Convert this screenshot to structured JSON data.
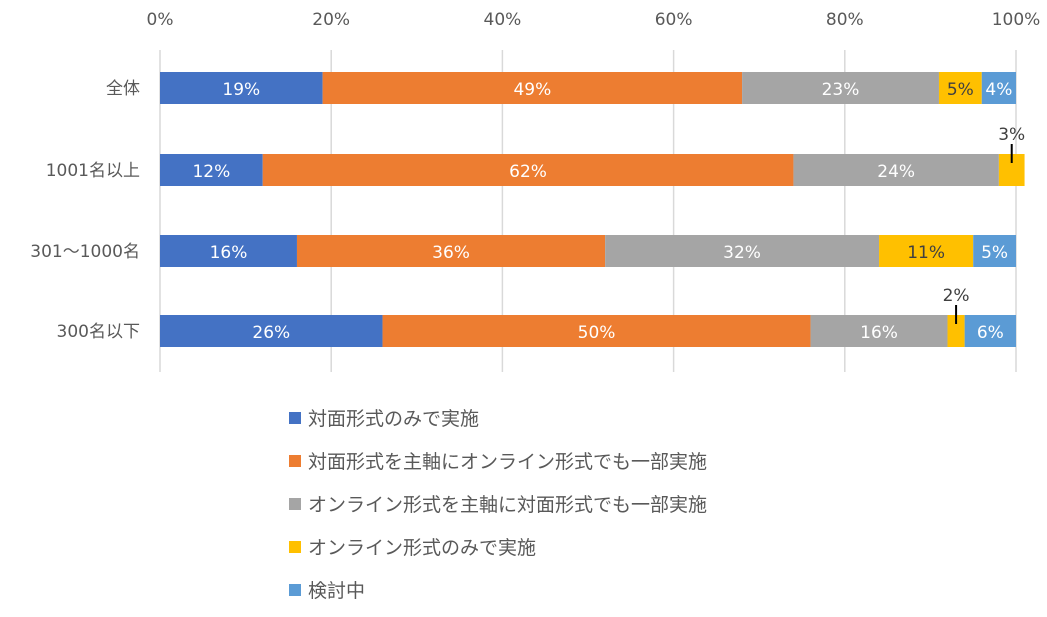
{
  "chart_data": {
    "type": "bar",
    "orientation": "horizontal",
    "stacked": "percent",
    "categories": [
      "全体",
      "1001名以上",
      "301〜1000名",
      "300名以下"
    ],
    "xlim": [
      0,
      100
    ],
    "x_ticks": [
      "0%",
      "20%",
      "40%",
      "60%",
      "80%",
      "100%"
    ],
    "grid": true,
    "legend_position": "bottom",
    "series": [
      {
        "name": "対面形式のみで実施",
        "color": "#4472C4",
        "values": [
          19,
          12,
          16,
          26
        ]
      },
      {
        "name": "対面形式を主軸にオンライン形式でも一部実施",
        "color": "#ED7D31",
        "values": [
          49,
          62,
          36,
          50
        ]
      },
      {
        "name": "オンライン形式を主軸に対面形式でも一部実施",
        "color": "#A5A5A5",
        "values": [
          23,
          24,
          32,
          16
        ]
      },
      {
        "name": "オンライン形式のみで実施",
        "color": "#FFC000",
        "values": [
          5,
          3,
          11,
          2
        ]
      },
      {
        "name": "検討中",
        "color": "#5B9BD5",
        "values": [
          4,
          0,
          5,
          6
        ]
      }
    ]
  }
}
